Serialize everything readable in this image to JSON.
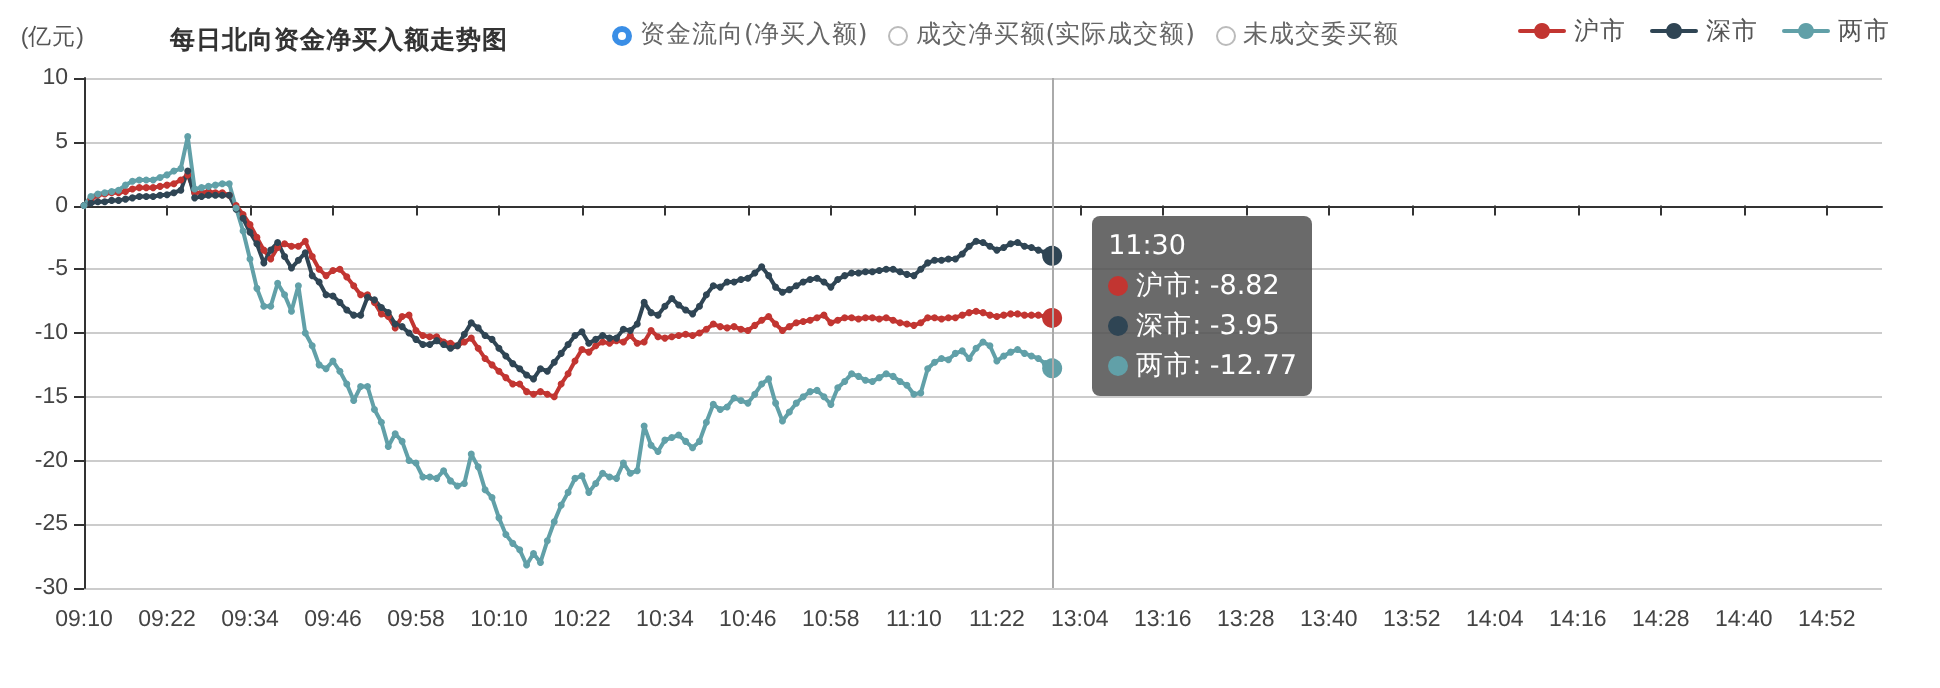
{
  "chart_data": {
    "type": "line",
    "title": "每日北向资金净买入额走势图",
    "ylabel": "(亿元)",
    "annotations": [
      "资金流向(净买入额)",
      "成交净买额(实际成交额)",
      "未成交委买额",
      "沪市: -8.82",
      "深市: -3.95",
      "两市: -12.77"
    ],
    "categories": [
      "09:10",
      null,
      null,
      null,
      null,
      null,
      null,
      null,
      null,
      null,
      null,
      null,
      "09:22",
      null,
      null,
      null,
      null,
      null,
      null,
      null,
      null,
      null,
      null,
      null,
      "09:34",
      null,
      null,
      null,
      null,
      null,
      null,
      null,
      null,
      null,
      null,
      null,
      "09:46",
      null,
      null,
      null,
      null,
      null,
      null,
      null,
      null,
      null,
      null,
      null,
      "09:58",
      null,
      null,
      null,
      null,
      null,
      null,
      null,
      null,
      null,
      null,
      null,
      "10:10",
      null,
      null,
      null,
      null,
      null,
      null,
      null,
      null,
      null,
      null,
      null,
      "10:22",
      null,
      null,
      null,
      null,
      null,
      null,
      null,
      null,
      null,
      null,
      null,
      "10:34",
      null,
      null,
      null,
      null,
      null,
      null,
      null,
      null,
      null,
      null,
      null,
      "10:46",
      null,
      null,
      null,
      null,
      null,
      null,
      null,
      null,
      null,
      null,
      null,
      "10:58",
      null,
      null,
      null,
      null,
      null,
      null,
      null,
      null,
      null,
      null,
      null,
      "11:10",
      null,
      null,
      null,
      null,
      null,
      null,
      null,
      null,
      null,
      null,
      null,
      "11:22",
      null,
      null,
      null,
      null,
      null,
      null,
      null,
      null,
      null,
      null,
      null,
      "13:04",
      null,
      null,
      null,
      null,
      null,
      null,
      null,
      null,
      null,
      null,
      null,
      "13:16",
      null,
      null,
      null,
      null,
      null,
      null,
      null,
      null,
      null,
      null,
      null,
      "13:28",
      null,
      null,
      null,
      null,
      null,
      null,
      null,
      null,
      null,
      null,
      null,
      "13:40",
      null,
      null,
      null,
      null,
      null,
      null,
      null,
      null,
      null,
      null,
      null,
      "13:52",
      null,
      null,
      null,
      null,
      null,
      null,
      null,
      null,
      null,
      null,
      null,
      "14:04",
      null,
      null,
      null,
      null,
      null,
      null,
      null,
      null,
      null,
      null,
      null,
      "14:16",
      null,
      null,
      null,
      null,
      null,
      null,
      null,
      null,
      null,
      null,
      null,
      "14:28",
      null,
      null,
      null,
      null,
      null,
      null,
      null,
      null,
      null,
      null,
      null,
      "14:40",
      null,
      null,
      null,
      null,
      null,
      null,
      null,
      null,
      null,
      null,
      null,
      "14:52",
      null,
      null,
      null,
      null,
      null,
      null,
      null,
      null
    ],
    "series": [
      {
        "name": "沪市",
        "color": "#c23531",
        "values": [
          0,
          0.5,
          0.8,
          0.9,
          1.0,
          1.0,
          1.1,
          1.3,
          1.4,
          1.4,
          1.4,
          1.5,
          1.6,
          1.7,
          2.0,
          2.4,
          1.0,
          1.0,
          1.1,
          1.0,
          1.0,
          0.8,
          0,
          -0.7,
          -1.5,
          -2.5,
          -3.5,
          -4.2,
          -3.3,
          -3.0,
          -3.2,
          -3.2,
          -2.8,
          -4.0,
          -5.0,
          -5.5,
          -5.1,
          -5.0,
          -5.6,
          -6.3,
          -7.0,
          -7.0,
          -7.6,
          -8.5,
          -8.7,
          -9.6,
          -8.7,
          -8.6,
          -9.8,
          -10.2,
          -10.3,
          -10.3,
          -10.7,
          -10.8,
          -11.0,
          -10.7,
          -10.4,
          -11.2,
          -12.0,
          -12.5,
          -13.0,
          -13.5,
          -14.0,
          -14.0,
          -14.6,
          -14.8,
          -14.6,
          -14.8,
          -15.0,
          -14.0,
          -13.2,
          -12.2,
          -11.3,
          -11.5,
          -11.0,
          -10.7,
          -10.8,
          -10.6,
          -10.7,
          -10.2,
          -10.8,
          -10.7,
          -9.8,
          -10.3,
          -10.4,
          -10.3,
          -10.2,
          -10.1,
          -10.2,
          -10.0,
          -9.7,
          -9.3,
          -9.5,
          -9.6,
          -9.5,
          -9.7,
          -9.8,
          -9.4,
          -9.0,
          -8.7,
          -9.3,
          -9.8,
          -9.5,
          -9.2,
          -9.1,
          -9.0,
          -8.8,
          -8.6,
          -9.2,
          -9.0,
          -8.8,
          -8.8,
          -8.9,
          -8.8,
          -8.8,
          -8.9,
          -8.8,
          -9.0,
          -9.2,
          -9.3,
          -9.4,
          -9.2,
          -8.8,
          -8.8,
          -8.9,
          -8.8,
          -8.8,
          -8.6,
          -8.4,
          -8.3,
          -8.4,
          -8.6,
          -8.7,
          -8.6,
          -8.5,
          -8.5,
          -8.6,
          -8.6,
          -8.6,
          -8.7,
          -8.82,
          null,
          null,
          null,
          null,
          null,
          null,
          null,
          null,
          null,
          null,
          null,
          null,
          null,
          null,
          null,
          null,
          null,
          null,
          null,
          null,
          null,
          null,
          null,
          null,
          null,
          null,
          null,
          null,
          null,
          null,
          null,
          null,
          null,
          null,
          null,
          null,
          null,
          null,
          null,
          null,
          null,
          null,
          null,
          null,
          null,
          null,
          null,
          null,
          null,
          null,
          null,
          null,
          null,
          null,
          null,
          null,
          null,
          null,
          null,
          null,
          null,
          null,
          null,
          null,
          null,
          null,
          null,
          null,
          null,
          null,
          null,
          null,
          null,
          null,
          null,
          null,
          null,
          null,
          null,
          null,
          null,
          null,
          null,
          null,
          null,
          null,
          null,
          null,
          null,
          null,
          null,
          null,
          null,
          null,
          null,
          null,
          null,
          null,
          null,
          null,
          null,
          null,
          null,
          null,
          null,
          null,
          null,
          null,
          null,
          null,
          null,
          null,
          null,
          null,
          null,
          null,
          null,
          null,
          null,
          null
        ]
      },
      {
        "name": "深市",
        "color": "#2f4554",
        "values": [
          0,
          0.2,
          0.3,
          0.3,
          0.4,
          0.4,
          0.5,
          0.6,
          0.7,
          0.7,
          0.7,
          0.8,
          0.85,
          1.0,
          1.2,
          2.7,
          0.6,
          0.7,
          0.8,
          0.8,
          0.8,
          0.8,
          -0.3,
          -1.0,
          -2.1,
          -3.0,
          -4.5,
          -3.5,
          -2.9,
          -4.0,
          -4.9,
          -4.3,
          -3.7,
          -5.5,
          -6.0,
          -7.0,
          -7.1,
          -7.6,
          -8.2,
          -8.6,
          -8.6,
          -7.2,
          -7.4,
          -8.0,
          -8.4,
          -9.3,
          -9.5,
          -10.0,
          -10.5,
          -10.9,
          -10.9,
          -10.6,
          -10.9,
          -11.2,
          -11.0,
          -10.1,
          -9.2,
          -9.6,
          -10.2,
          -10.5,
          -11.2,
          -11.8,
          -12.4,
          -12.8,
          -13.3,
          -13.6,
          -12.8,
          -13.0,
          -12.3,
          -11.6,
          -10.9,
          -10.2,
          -9.9,
          -10.8,
          -10.5,
          -10.2,
          -10.4,
          -10.4,
          -9.7,
          -9.8,
          -9.3,
          -7.6,
          -8.4,
          -8.6,
          -7.9,
          -7.3,
          -7.8,
          -8.2,
          -8.5,
          -7.9,
          -7.0,
          -6.3,
          -6.4,
          -6.0,
          -6.0,
          -5.8,
          -5.7,
          -5.3,
          -4.8,
          -5.5,
          -6.4,
          -6.8,
          -6.6,
          -6.3,
          -6.0,
          -5.8,
          -5.7,
          -6.0,
          -6.4,
          -5.8,
          -5.5,
          -5.3,
          -5.3,
          -5.2,
          -5.2,
          -5.1,
          -5.0,
          -5.0,
          -5.2,
          -5.4,
          -5.5,
          -5.0,
          -4.5,
          -4.3,
          -4.3,
          -4.2,
          -4.2,
          -3.8,
          -3.2,
          -2.8,
          -2.9,
          -3.2,
          -3.5,
          -3.3,
          -3.0,
          -2.9,
          -3.2,
          -3.3,
          -3.5,
          -3.7,
          -3.95,
          null,
          null,
          null,
          null,
          null,
          null,
          null,
          null,
          null,
          null,
          null,
          null,
          null,
          null,
          null,
          null,
          null,
          null,
          null,
          null,
          null,
          null,
          null,
          null,
          null,
          null,
          null,
          null,
          null,
          null,
          null,
          null,
          null,
          null,
          null,
          null,
          null,
          null,
          null,
          null,
          null,
          null,
          null,
          null,
          null,
          null,
          null,
          null,
          null,
          null,
          null,
          null,
          null,
          null,
          null,
          null,
          null,
          null,
          null,
          null,
          null,
          null,
          null,
          null,
          null,
          null,
          null,
          null,
          null,
          null,
          null,
          null,
          null,
          null,
          null,
          null,
          null,
          null,
          null,
          null,
          null,
          null,
          null,
          null,
          null,
          null,
          null,
          null,
          null,
          null,
          null,
          null,
          null,
          null,
          null,
          null,
          null,
          null,
          null,
          null,
          null,
          null,
          null,
          null,
          null,
          null,
          null,
          null,
          null,
          null,
          null,
          null,
          null,
          null,
          null,
          null,
          null,
          null,
          null,
          null
        ]
      },
      {
        "name": "两市",
        "color": "#61a0a8",
        "values": [
          0,
          0.7,
          0.9,
          1.0,
          1.1,
          1.2,
          1.6,
          1.9,
          2.0,
          2.0,
          2.0,
          2.2,
          2.4,
          2.7,
          2.9,
          5.4,
          1.3,
          1.4,
          1.5,
          1.6,
          1.7,
          1.7,
          -0.2,
          -2.0,
          -4.2,
          -6.5,
          -7.9,
          -7.9,
          -6.1,
          -7.0,
          -8.3,
          -6.3,
          -10.0,
          -11.0,
          -12.5,
          -12.8,
          -12.2,
          -13.0,
          -14.0,
          -15.3,
          -14.2,
          -14.2,
          -16.0,
          -17.0,
          -18.9,
          -17.9,
          -18.5,
          -20.0,
          -20.2,
          -21.3,
          -21.3,
          -21.4,
          -20.8,
          -21.6,
          -22.0,
          -21.8,
          -19.5,
          -20.5,
          -22.3,
          -22.9,
          -24.5,
          -25.8,
          -26.5,
          -27.0,
          -28.2,
          -27.3,
          -28.0,
          -26.3,
          -24.8,
          -23.5,
          -22.5,
          -21.4,
          -21.2,
          -22.5,
          -21.8,
          -21.0,
          -21.3,
          -21.4,
          -20.2,
          -21.0,
          -20.8,
          -17.3,
          -18.8,
          -19.3,
          -18.4,
          -18.2,
          -18.0,
          -18.5,
          -19.0,
          -18.5,
          -17.0,
          -15.6,
          -16.0,
          -15.8,
          -15.1,
          -15.3,
          -15.5,
          -14.8,
          -14.0,
          -13.6,
          -15.5,
          -16.9,
          -16.2,
          -15.5,
          -15.0,
          -14.6,
          -14.5,
          -15.0,
          -15.6,
          -14.3,
          -13.8,
          -13.2,
          -13.4,
          -13.7,
          -13.8,
          -13.5,
          -13.2,
          -13.4,
          -13.8,
          -14.1,
          -14.8,
          -14.7,
          -12.8,
          -12.3,
          -12.0,
          -12.1,
          -11.6,
          -11.4,
          -12.0,
          -11.2,
          -10.7,
          -11.0,
          -12.2,
          -11.8,
          -11.5,
          -11.3,
          -11.6,
          -11.8,
          -12.0,
          -12.4,
          -12.77,
          null,
          null,
          null,
          null,
          null,
          null,
          null,
          null,
          null,
          null,
          null,
          null,
          null,
          null,
          null,
          null,
          null,
          null,
          null,
          null,
          null,
          null,
          null,
          null,
          null,
          null,
          null,
          null,
          null,
          null,
          null,
          null,
          null,
          null,
          null,
          null,
          null,
          null,
          null,
          null,
          null,
          null,
          null,
          null,
          null,
          null,
          null,
          null,
          null,
          null,
          null,
          null,
          null,
          null,
          null,
          null,
          null,
          null,
          null,
          null,
          null,
          null,
          null,
          null,
          null,
          null,
          null,
          null,
          null,
          null,
          null,
          null,
          null,
          null,
          null,
          null,
          null,
          null,
          null,
          null,
          null,
          null,
          null,
          null,
          null,
          null,
          null,
          null,
          null,
          null,
          null,
          null,
          null,
          null,
          null,
          null,
          null,
          null,
          null,
          null,
          null,
          null,
          null,
          null,
          null,
          null,
          null,
          null,
          null,
          null,
          null,
          null,
          null,
          null,
          null,
          null,
          null,
          null,
          null,
          null
        ]
      }
    ],
    "ylim": [
      -30,
      10
    ],
    "yticks": [
      -30,
      -25,
      -20,
      -15,
      -10,
      -5,
      0,
      5,
      10
    ],
    "ref_lines": [
      {
        "axis": "x",
        "value": "11:30",
        "color": "#aaaaaa"
      }
    ],
    "grid": "y",
    "legend": "top right",
    "marker": "circle",
    "line_style": "solid"
  }
}
